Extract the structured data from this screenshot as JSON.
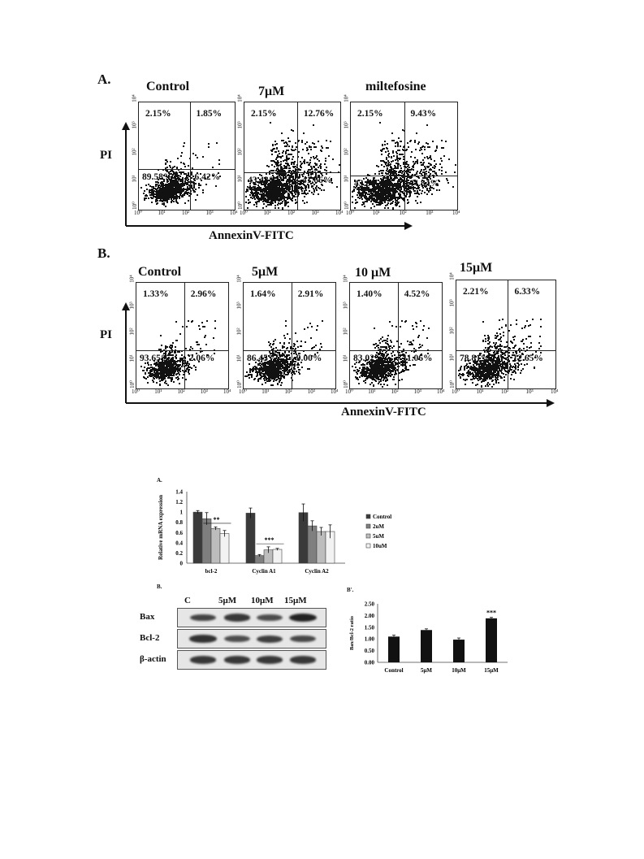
{
  "figure1": {
    "panel_a": {
      "label": "A.",
      "y_axis_label": "PI",
      "x_axis_label": "AnnexinV-FITC",
      "plots": [
        {
          "title": "Control",
          "q_ul": "2.15%",
          "q_ur": "1.85%",
          "q_ll": "89.58%",
          "q_lr": "6.42%",
          "events": 900,
          "spread": 0.35
        },
        {
          "title": "7μM",
          "q_ul": "2.15%",
          "q_ur": "12.76%",
          "q_ll": "43.43%",
          "q_lr": "41.66%",
          "events": 1500,
          "spread": 1.0
        },
        {
          "title": "miltefosine",
          "q_ul": "2.15%",
          "q_ur": "9.43%",
          "q_ll": "43.6%",
          "q_lr": "44.84%",
          "events": 1500,
          "spread": 1.0
        }
      ]
    },
    "panel_b": {
      "label": "B.",
      "y_axis_label": "PI",
      "x_axis_label": "AnnexinV-FITC",
      "plots": [
        {
          "title": "Control",
          "q_ul": "1.33%",
          "q_ur": "2.96%",
          "q_ll": "93.65%",
          "q_lr": "2.06%",
          "events": 700,
          "spread": 0.35
        },
        {
          "title": "5μM",
          "q_ul": "1.64%",
          "q_ur": "2.91%",
          "q_ll": "86.45%",
          "q_lr": "9.00%",
          "events": 800,
          "spread": 0.45
        },
        {
          "title": "10 μM",
          "q_ul": "1.40%",
          "q_ur": "4.52%",
          "q_ll": "83.02%",
          "q_lr": "11.06%",
          "events": 850,
          "spread": 0.5
        },
        {
          "title": "15μM",
          "q_ul": "2.21%",
          "q_ur": "6.33%",
          "q_ll": "78.81%",
          "q_lr": "12.65%",
          "events": 900,
          "spread": 0.6
        }
      ]
    },
    "ticks": [
      "10⁰",
      "10¹",
      "10²",
      "10³",
      "10⁴"
    ]
  },
  "figure2": {
    "panel_a_label": "A.",
    "panel_b_label": "B.",
    "panel_b2_label": "B'.",
    "chart_data": [
      {
        "type": "bar",
        "ylabel": "Relative mRNA expression",
        "ylim": [
          0,
          1.4
        ],
        "yticks": [
          "0",
          "0.2",
          "0.4",
          "0.6",
          "0.8",
          "1",
          "1.2",
          "1.4"
        ],
        "categories": [
          "bcl-2",
          "Cyclin A1",
          "Cyclin A2"
        ],
        "series": [
          {
            "name": "Control",
            "values": [
              1.0,
              0.98,
              0.99
            ],
            "errors": [
              0.03,
              0.1,
              0.17
            ],
            "color": "#3a3a3a"
          },
          {
            "name": "2uM",
            "values": [
              0.87,
              0.15,
              0.73
            ],
            "errors": [
              0.12,
              0.02,
              0.1
            ],
            "color": "#7f7f7f"
          },
          {
            "name": "5uM",
            "values": [
              0.68,
              0.26,
              0.62
            ],
            "errors": [
              0.03,
              0.06,
              0.08
            ],
            "color": "#bdbdbd"
          },
          {
            "name": "10uM",
            "values": [
              0.58,
              0.27,
              0.62
            ],
            "errors": [
              0.06,
              0.02,
              0.13
            ],
            "color": "#f2f2f2"
          }
        ],
        "annotations": [
          "**",
          "***"
        ],
        "legend": "right"
      },
      {
        "type": "bar",
        "ylabel": "Bax/Bcl-2 ratio",
        "ylim": [
          0,
          2.5
        ],
        "yticks": [
          "0.00",
          "0.50",
          "1.00",
          "1.50",
          "2.00",
          "2.50"
        ],
        "categories": [
          "Control",
          "5μM",
          "10μM",
          "15μM"
        ],
        "values": [
          1.1,
          1.38,
          0.97,
          1.88
        ],
        "errors": [
          0.06,
          0.05,
          0.07,
          0.04
        ],
        "annotations": [
          "***"
        ],
        "color": "#111111"
      }
    ],
    "western_blot": {
      "lanes": [
        "C",
        "5μM",
        "10μM",
        "15μM"
      ],
      "rows": [
        {
          "label": "Bax",
          "intensity": [
            0.7,
            0.8,
            0.6,
            1.0
          ]
        },
        {
          "label": "Bcl-2",
          "intensity": [
            0.85,
            0.6,
            0.75,
            0.65
          ]
        },
        {
          "label": "β-actin",
          "intensity": [
            0.8,
            0.8,
            0.8,
            0.8
          ]
        }
      ]
    }
  }
}
